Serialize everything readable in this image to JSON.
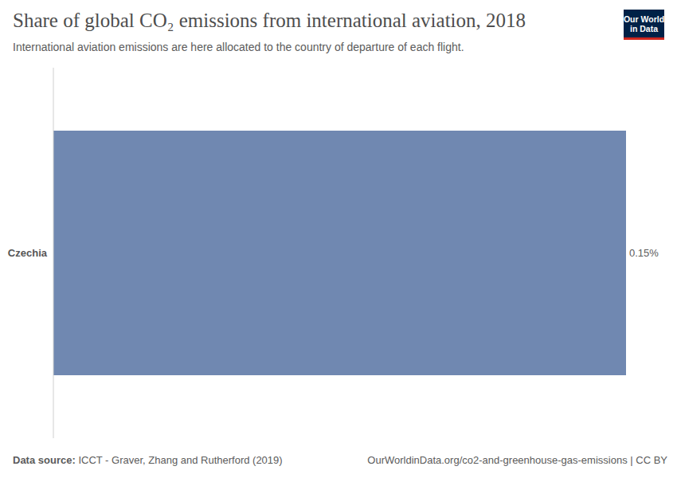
{
  "chart_data": {
    "type": "bar",
    "title": "Share of global CO₂ emissions from international aviation, 2018",
    "subtitle": "International aviation emissions are here allocated to the country of departure of each flight.",
    "categories": [
      "Czechia"
    ],
    "values": [
      0.15
    ],
    "value_labels": [
      "0.15%"
    ],
    "data_labels": true,
    "orientation": "horizontal",
    "color": "#7088b1",
    "xlim": [
      0,
      0.15
    ],
    "tick_labels": "y",
    "grid": false,
    "source_label": "Data source:",
    "source": "ICCT - Graver, Zhang and Rutherford (2019)",
    "url": "OurWorldinData.org/co2-and-greenhouse-gas-emissions | CC BY",
    "logo": [
      "Our World",
      "in Data"
    ]
  }
}
